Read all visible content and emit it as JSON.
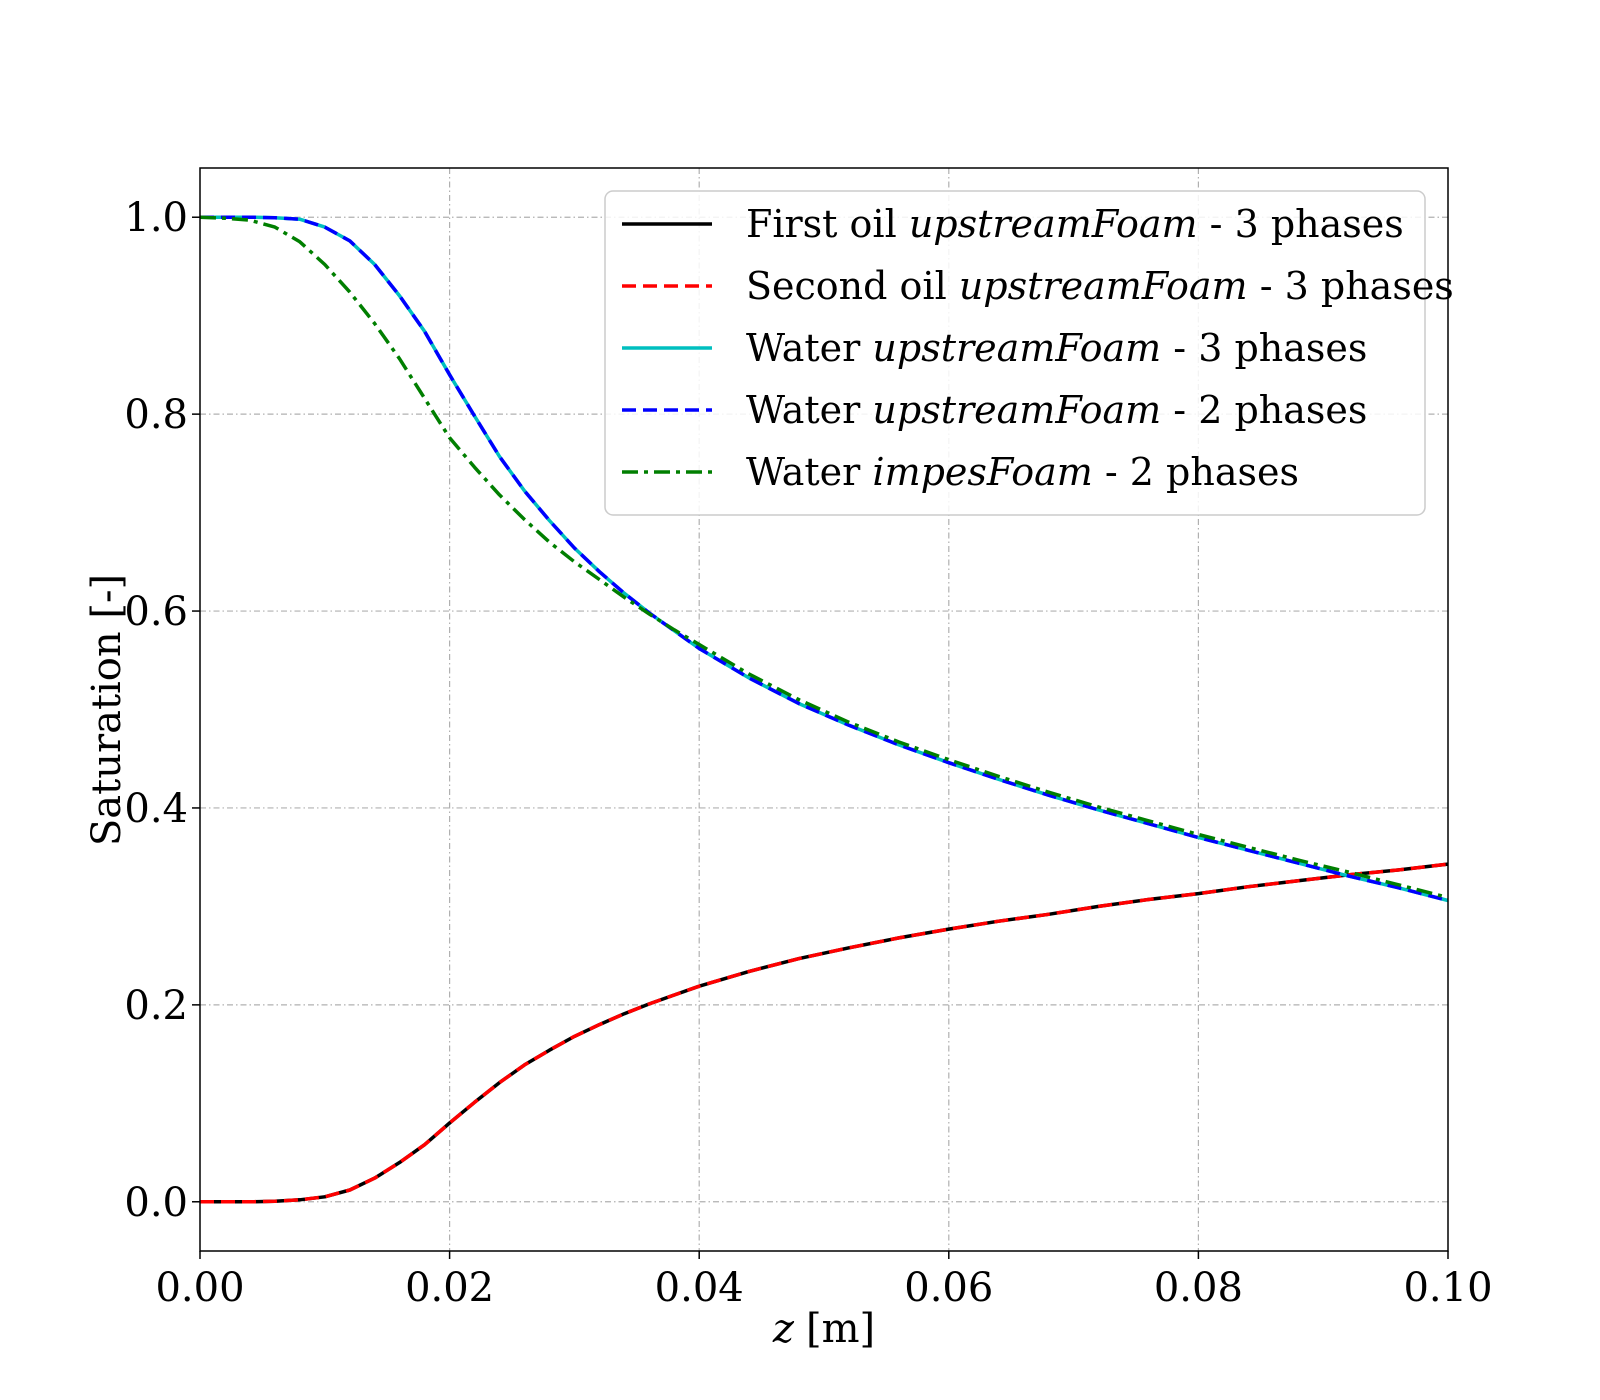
{
  "chart_data": {
    "type": "line",
    "xlabel_var": "z",
    "xlabel_unit": "[m]",
    "ylabel": "Saturation [-]",
    "xlim": [
      0.0,
      0.1
    ],
    "ylim": [
      -0.05,
      1.05
    ],
    "xticks": [
      "0.00",
      "0.02",
      "0.04",
      "0.06",
      "0.08",
      "0.10"
    ],
    "yticks": [
      "0.0",
      "0.2",
      "0.4",
      "0.6",
      "0.8",
      "1.0"
    ],
    "grid": true,
    "legend_position": "top-right",
    "x": [
      0.0,
      0.002,
      0.004,
      0.006,
      0.008,
      0.01,
      0.012,
      0.014,
      0.016,
      0.018,
      0.02,
      0.022,
      0.024,
      0.026,
      0.028,
      0.03,
      0.032,
      0.034,
      0.036,
      0.038,
      0.04,
      0.044,
      0.048,
      0.052,
      0.056,
      0.06,
      0.064,
      0.068,
      0.072,
      0.076,
      0.08,
      0.084,
      0.088,
      0.092,
      0.096,
      0.1
    ],
    "series": [
      {
        "name_pre": "First oil ",
        "name_em": "upstreamFoam",
        "name_post": " - 3 phases",
        "color": "#000000",
        "dash": "solid",
        "values": [
          0.0,
          0.0,
          0.0,
          0.0005,
          0.002,
          0.005,
          0.012,
          0.024,
          0.04,
          0.058,
          0.08,
          0.101,
          0.121,
          0.139,
          0.154,
          0.168,
          0.18,
          0.191,
          0.201,
          0.21,
          0.219,
          0.234,
          0.247,
          0.258,
          0.268,
          0.277,
          0.285,
          0.292,
          0.3,
          0.307,
          0.313,
          0.32,
          0.326,
          0.332,
          0.337,
          0.343
        ]
      },
      {
        "name_pre": "Second oil ",
        "name_em": "upstreamFoam",
        "name_post": " - 3 phases",
        "color": "#ff0000",
        "dash": "dashed",
        "values": [
          0.0,
          0.0,
          0.0,
          0.0005,
          0.002,
          0.005,
          0.012,
          0.024,
          0.04,
          0.058,
          0.08,
          0.101,
          0.121,
          0.139,
          0.154,
          0.168,
          0.18,
          0.191,
          0.201,
          0.21,
          0.219,
          0.234,
          0.247,
          0.258,
          0.268,
          0.277,
          0.285,
          0.292,
          0.3,
          0.307,
          0.313,
          0.32,
          0.326,
          0.332,
          0.337,
          0.343
        ]
      },
      {
        "name_pre": "Water ",
        "name_em": "upstreamFoam",
        "name_post": " - 3 phases",
        "color": "#00bfbf",
        "dash": "solid",
        "values": [
          1.0,
          1.0,
          1.0,
          0.9995,
          0.998,
          0.99,
          0.976,
          0.952,
          0.92,
          0.884,
          0.84,
          0.798,
          0.757,
          0.722,
          0.692,
          0.664,
          0.64,
          0.618,
          0.598,
          0.58,
          0.562,
          0.532,
          0.506,
          0.484,
          0.464,
          0.446,
          0.429,
          0.413,
          0.398,
          0.384,
          0.37,
          0.357,
          0.344,
          0.331,
          0.319,
          0.306
        ]
      },
      {
        "name_pre": "Water ",
        "name_em": "upstreamFoam",
        "name_post": " - 2 phases",
        "color": "#0000ff",
        "dash": "dashed",
        "values": [
          1.0,
          1.0,
          1.0,
          0.9995,
          0.998,
          0.99,
          0.976,
          0.952,
          0.92,
          0.884,
          0.84,
          0.798,
          0.757,
          0.722,
          0.692,
          0.664,
          0.64,
          0.618,
          0.598,
          0.58,
          0.562,
          0.532,
          0.506,
          0.484,
          0.464,
          0.446,
          0.429,
          0.413,
          0.398,
          0.384,
          0.37,
          0.357,
          0.344,
          0.331,
          0.319,
          0.306
        ]
      },
      {
        "name_pre": "Water ",
        "name_em": "impesFoam",
        "name_post": " - 2 phases",
        "color": "#007f00",
        "dash": "dashdot",
        "values": [
          1.0,
          0.999,
          0.997,
          0.99,
          0.975,
          0.952,
          0.924,
          0.892,
          0.856,
          0.816,
          0.776,
          0.746,
          0.718,
          0.693,
          0.67,
          0.65,
          0.632,
          0.614,
          0.597,
          0.581,
          0.566,
          0.536,
          0.51,
          0.487,
          0.467,
          0.449,
          0.432,
          0.416,
          0.401,
          0.387,
          0.373,
          0.36,
          0.347,
          0.335,
          0.322,
          0.309
        ]
      }
    ]
  }
}
